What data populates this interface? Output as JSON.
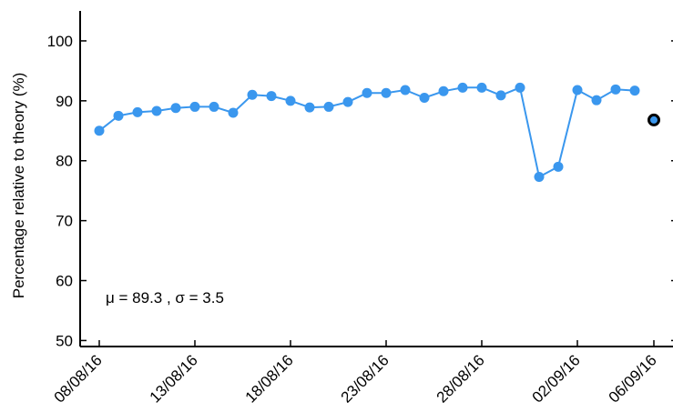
{
  "chart_data": {
    "type": "line",
    "title": "",
    "xlabel": "",
    "ylabel": "Percentage relative to theory (%)",
    "ylim": [
      49,
      105
    ],
    "xlim": [
      "2016-08-07",
      "2016-09-07"
    ],
    "yticks": [
      50,
      60,
      70,
      80,
      90,
      100
    ],
    "xticks": [
      {
        "date": "2016-08-08",
        "label": "08/08/16"
      },
      {
        "date": "2016-08-13",
        "label": "13/08/16"
      },
      {
        "date": "2016-08-18",
        "label": "18/08/16"
      },
      {
        "date": "2016-08-23",
        "label": "23/08/16"
      },
      {
        "date": "2016-08-28",
        "label": "28/08/16"
      },
      {
        "date": "2016-09-02",
        "label": "02/09/16"
      },
      {
        "date": "2016-09-06",
        "label": "06/09/16"
      }
    ],
    "grid": false,
    "series": [
      {
        "name": "",
        "color": "#3a97ee",
        "points": [
          {
            "x": "2016-08-08",
            "y": 85.0
          },
          {
            "x": "2016-08-09",
            "y": 87.5
          },
          {
            "x": "2016-08-10",
            "y": 88.1
          },
          {
            "x": "2016-08-11",
            "y": 88.3
          },
          {
            "x": "2016-08-12",
            "y": 88.8
          },
          {
            "x": "2016-08-13",
            "y": 89.0
          },
          {
            "x": "2016-08-14",
            "y": 89.0
          },
          {
            "x": "2016-08-15",
            "y": 88.0
          },
          {
            "x": "2016-08-16",
            "y": 91.0
          },
          {
            "x": "2016-08-17",
            "y": 90.8
          },
          {
            "x": "2016-08-18",
            "y": 90.0
          },
          {
            "x": "2016-08-19",
            "y": 88.9
          },
          {
            "x": "2016-08-20",
            "y": 89.0
          },
          {
            "x": "2016-08-21",
            "y": 89.8
          },
          {
            "x": "2016-08-22",
            "y": 91.3
          },
          {
            "x": "2016-08-23",
            "y": 91.3
          },
          {
            "x": "2016-08-24",
            "y": 91.8
          },
          {
            "x": "2016-08-25",
            "y": 90.5
          },
          {
            "x": "2016-08-26",
            "y": 91.6
          },
          {
            "x": "2016-08-27",
            "y": 92.2
          },
          {
            "x": "2016-08-28",
            "y": 92.2
          },
          {
            "x": "2016-08-29",
            "y": 90.9
          },
          {
            "x": "2016-08-30",
            "y": 92.2
          },
          {
            "x": "2016-08-31",
            "y": 77.3
          },
          {
            "x": "2016-09-01",
            "y": 79.0
          },
          {
            "x": "2016-09-02",
            "y": 91.8
          },
          {
            "x": "2016-09-03",
            "y": 90.1
          },
          {
            "x": "2016-09-04",
            "y": 91.9
          },
          {
            "x": "2016-09-05",
            "y": 91.7
          }
        ]
      }
    ],
    "highlight": {
      "x": "2016-09-06",
      "y": 86.8,
      "fill": "#3a97ee",
      "stroke": "#000000"
    },
    "annotation": "μ = 89.3 , σ = 3.5"
  }
}
